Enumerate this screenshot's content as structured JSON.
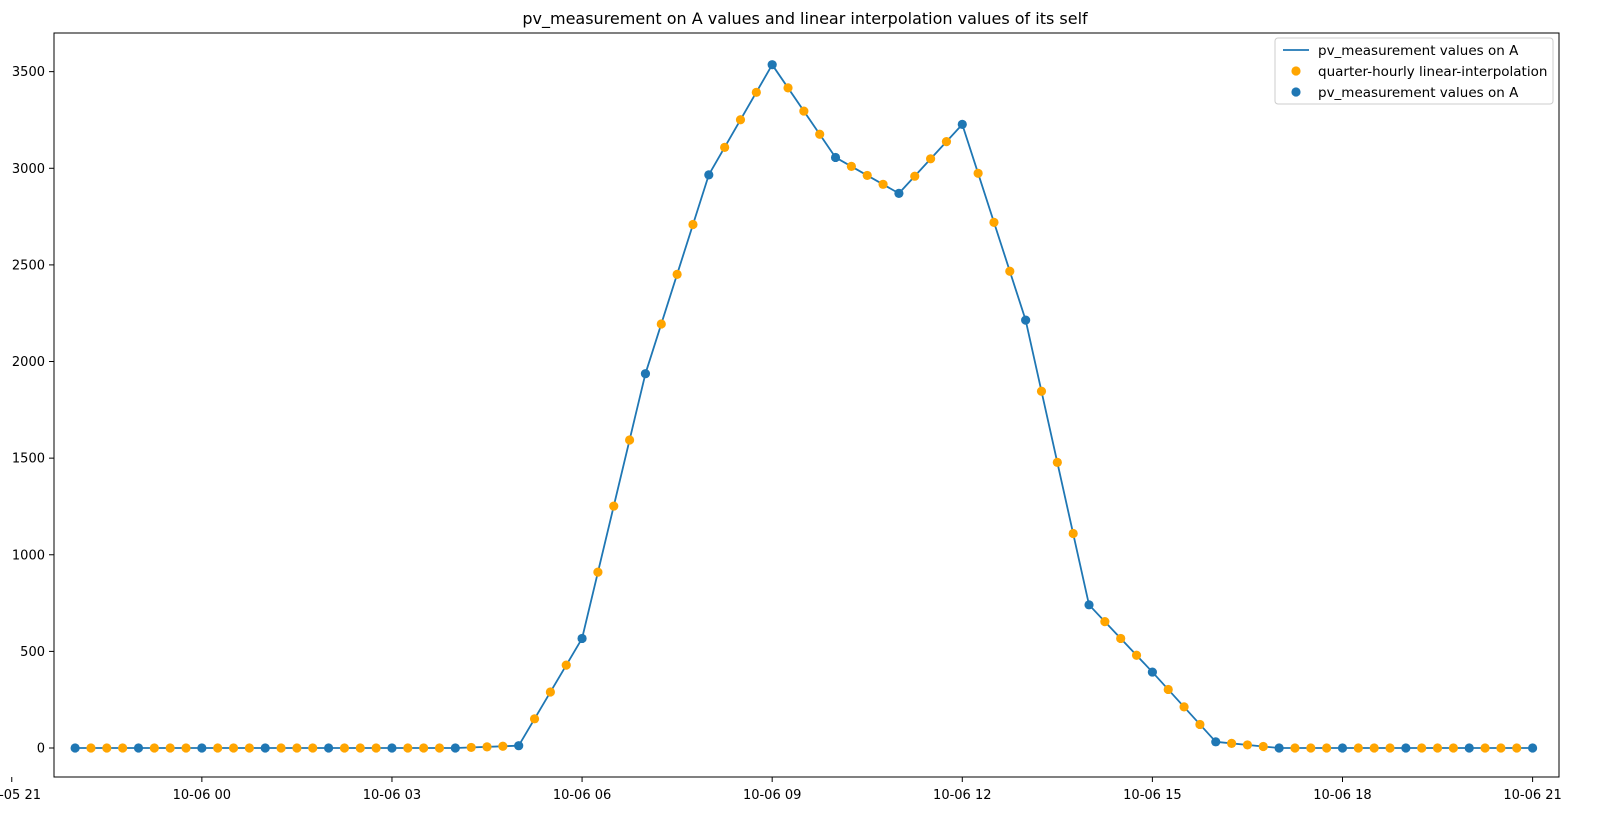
{
  "chart_data": {
    "type": "line",
    "title": "pv_measurement on A values and linear interpolation values of its self",
    "xlabel": "",
    "ylabel": "",
    "x_axis": "datetime",
    "xlim": [
      "2023-10-05 21:40",
      "2023-10-06 21:25"
    ],
    "ylim": [
      -150,
      3700
    ],
    "x_ticks": [
      "2023-10-05 21:00",
      "2023-10-06 00:00",
      "2023-10-06 03:00",
      "2023-10-06 06:00",
      "2023-10-06 09:00",
      "2023-10-06 12:00",
      "2023-10-06 15:00",
      "2023-10-06 18:00",
      "2023-10-06 21:00"
    ],
    "x_tick_labels": [
      "10-05 21",
      "10-06 00",
      "10-06 03",
      "10-06 06",
      "10-06 09",
      "10-06 12",
      "10-06 15",
      "10-06 18",
      "10-06 21"
    ],
    "y_ticks": [
      0,
      500,
      1000,
      1500,
      2000,
      2500,
      3000,
      3500
    ],
    "y_tick_labels": [
      "0",
      "500",
      "1000",
      "1500",
      "2000",
      "2500",
      "3000",
      "3500"
    ],
    "grid": false,
    "legend_position": "top-right",
    "series": [
      {
        "name": "pv_measurement values on A",
        "kind": "line",
        "color": "#1f77b4",
        "x": [
          "2023-10-05 22:00",
          "2023-10-05 23:00",
          "2023-10-06 00:00",
          "2023-10-06 01:00",
          "2023-10-06 02:00",
          "2023-10-06 03:00",
          "2023-10-06 04:00",
          "2023-10-06 05:00",
          "2023-10-06 06:00",
          "2023-10-06 07:00",
          "2023-10-06 08:00",
          "2023-10-06 09:00",
          "2023-10-06 10:00",
          "2023-10-06 11:00",
          "2023-10-06 12:00",
          "2023-10-06 13:00",
          "2023-10-06 14:00",
          "2023-10-06 15:00",
          "2023-10-06 16:00",
          "2023-10-06 17:00",
          "2023-10-06 18:00",
          "2023-10-06 19:00",
          "2023-10-06 20:00",
          "2023-10-06 21:00"
        ],
        "values": [
          0,
          0,
          0,
          0,
          0,
          0,
          0,
          12,
          567,
          1937,
          2966,
          3536,
          3056,
          2870,
          3227,
          2214,
          741,
          393,
          32,
          0,
          0,
          0,
          0,
          0
        ]
      },
      {
        "name": "quarter-hourly linear-interpolation",
        "kind": "scatter",
        "color": "#ffa500",
        "x": [
          "2023-10-05 22:15",
          "2023-10-05 22:30",
          "2023-10-05 22:45",
          "2023-10-05 23:15",
          "2023-10-05 23:30",
          "2023-10-05 23:45",
          "2023-10-06 00:15",
          "2023-10-06 00:30",
          "2023-10-06 00:45",
          "2023-10-06 01:15",
          "2023-10-06 01:30",
          "2023-10-06 01:45",
          "2023-10-06 02:15",
          "2023-10-06 02:30",
          "2023-10-06 02:45",
          "2023-10-06 03:15",
          "2023-10-06 03:30",
          "2023-10-06 03:45",
          "2023-10-06 04:15",
          "2023-10-06 04:30",
          "2023-10-06 04:45",
          "2023-10-06 05:15",
          "2023-10-06 05:30",
          "2023-10-06 05:45",
          "2023-10-06 06:15",
          "2023-10-06 06:30",
          "2023-10-06 06:45",
          "2023-10-06 07:15",
          "2023-10-06 07:30",
          "2023-10-06 07:45",
          "2023-10-06 08:15",
          "2023-10-06 08:30",
          "2023-10-06 08:45",
          "2023-10-06 09:15",
          "2023-10-06 09:30",
          "2023-10-06 09:45",
          "2023-10-06 10:15",
          "2023-10-06 10:30",
          "2023-10-06 10:45",
          "2023-10-06 11:15",
          "2023-10-06 11:30",
          "2023-10-06 11:45",
          "2023-10-06 12:15",
          "2023-10-06 12:30",
          "2023-10-06 12:45",
          "2023-10-06 13:15",
          "2023-10-06 13:30",
          "2023-10-06 13:45",
          "2023-10-06 14:15",
          "2023-10-06 14:30",
          "2023-10-06 14:45",
          "2023-10-06 15:15",
          "2023-10-06 15:30",
          "2023-10-06 15:45",
          "2023-10-06 16:15",
          "2023-10-06 16:30",
          "2023-10-06 16:45",
          "2023-10-06 17:15",
          "2023-10-06 17:30",
          "2023-10-06 17:45",
          "2023-10-06 18:15",
          "2023-10-06 18:30",
          "2023-10-06 18:45",
          "2023-10-06 19:15",
          "2023-10-06 19:30",
          "2023-10-06 19:45",
          "2023-10-06 20:15",
          "2023-10-06 20:30",
          "2023-10-06 20:45"
        ],
        "values": [
          0,
          0,
          0,
          0,
          0,
          0,
          0,
          0,
          0,
          0,
          0,
          0,
          0,
          0,
          0,
          0,
          0,
          0,
          3,
          6,
          9,
          151,
          290,
          429,
          910,
          1252,
          1594,
          2194,
          2451,
          2709,
          3108,
          3251,
          3393,
          3416,
          3296,
          3176,
          3010,
          2963,
          2917,
          2959,
          3049,
          3138,
          2974,
          2720,
          2467,
          1846,
          1478,
          1110,
          654,
          567,
          480,
          303,
          213,
          122,
          24,
          16,
          8,
          0,
          0,
          0,
          0,
          0,
          0,
          0,
          0,
          0,
          0,
          0,
          0
        ]
      },
      {
        "name": "pv_measurement values on A",
        "kind": "scatter",
        "color": "#1f77b4",
        "x": [
          "2023-10-05 22:00",
          "2023-10-05 23:00",
          "2023-10-06 00:00",
          "2023-10-06 01:00",
          "2023-10-06 02:00",
          "2023-10-06 03:00",
          "2023-10-06 04:00",
          "2023-10-06 05:00",
          "2023-10-06 06:00",
          "2023-10-06 07:00",
          "2023-10-06 08:00",
          "2023-10-06 09:00",
          "2023-10-06 10:00",
          "2023-10-06 11:00",
          "2023-10-06 12:00",
          "2023-10-06 13:00",
          "2023-10-06 14:00",
          "2023-10-06 15:00",
          "2023-10-06 16:00",
          "2023-10-06 17:00",
          "2023-10-06 18:00",
          "2023-10-06 19:00",
          "2023-10-06 20:00",
          "2023-10-06 21:00"
        ],
        "values": [
          0,
          0,
          0,
          0,
          0,
          0,
          0,
          12,
          567,
          1937,
          2966,
          3536,
          3056,
          2870,
          3227,
          2214,
          741,
          393,
          32,
          0,
          0,
          0,
          0,
          0
        ]
      }
    ]
  }
}
